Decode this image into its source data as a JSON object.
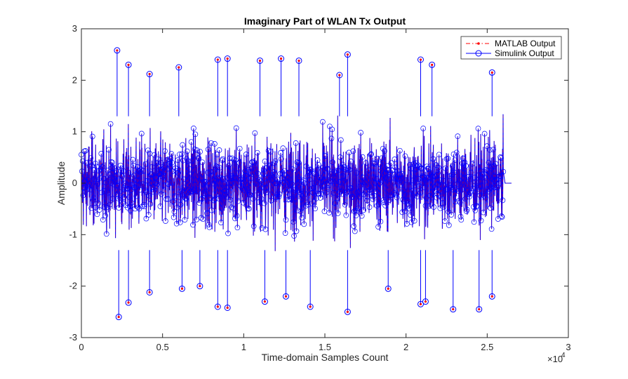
{
  "chart_data": {
    "type": "line",
    "title": "Imaginary Part of WLAN Tx Output",
    "xlabel": "Time-domain Samples Count",
    "ylabel": "Amplitude",
    "x_exponent_label": "×10",
    "x_exponent_power": "4",
    "xlim": [
      0,
      30000
    ],
    "ylim": [
      -3,
      3
    ],
    "x_ticks": [
      0,
      5000,
      10000,
      15000,
      20000,
      25000,
      30000
    ],
    "x_tick_labels": [
      "0",
      "0.5",
      "1",
      "1.5",
      "2",
      "2.5",
      "3"
    ],
    "y_ticks": [
      -3,
      -2,
      -1,
      0,
      1,
      2,
      3
    ],
    "y_tick_labels": [
      "-3",
      "-2",
      "-1",
      "0",
      "1",
      "2",
      "3"
    ],
    "grid": false,
    "legend_position": "top-right",
    "signal": {
      "sample_count": 26000,
      "end_index": 26500,
      "typical_amplitude_range": [
        -1.5,
        1.5
      ]
    },
    "series": [
      {
        "name": "MATLAB Output",
        "color": "#ff0000",
        "line_style": "dash-dot",
        "marker": "dot"
      },
      {
        "name": "Simulink Output",
        "color": "#0000ff",
        "line_style": "solid",
        "marker": "circle"
      }
    ],
    "annotated_peaks": [
      {
        "x": 2200,
        "y": 2.58
      },
      {
        "x": 2300,
        "y": -2.6
      },
      {
        "x": 2900,
        "y": 2.3
      },
      {
        "x": 2900,
        "y": -2.32
      },
      {
        "x": 4200,
        "y": 2.12
      },
      {
        "x": 4200,
        "y": -2.12
      },
      {
        "x": 6000,
        "y": 2.25
      },
      {
        "x": 6200,
        "y": -2.05
      },
      {
        "x": 7300,
        "y": -2.0
      },
      {
        "x": 8400,
        "y": 2.4
      },
      {
        "x": 8400,
        "y": -2.4
      },
      {
        "x": 9000,
        "y": 2.42
      },
      {
        "x": 9000,
        "y": -2.42
      },
      {
        "x": 11000,
        "y": 2.38
      },
      {
        "x": 11300,
        "y": -2.3
      },
      {
        "x": 12300,
        "y": 2.42
      },
      {
        "x": 12600,
        "y": -2.2
      },
      {
        "x": 13400,
        "y": 2.38
      },
      {
        "x": 14100,
        "y": -2.4
      },
      {
        "x": 15900,
        "y": 2.1
      },
      {
        "x": 16400,
        "y": 2.5
      },
      {
        "x": 16400,
        "y": -2.5
      },
      {
        "x": 18900,
        "y": -2.05
      },
      {
        "x": 20900,
        "y": 2.4
      },
      {
        "x": 20900,
        "y": -2.35
      },
      {
        "x": 21200,
        "y": -2.3
      },
      {
        "x": 21600,
        "y": 2.3
      },
      {
        "x": 22900,
        "y": -2.45
      },
      {
        "x": 24500,
        "y": -2.45
      },
      {
        "x": 25300,
        "y": 2.15
      },
      {
        "x": 25300,
        "y": -2.2
      }
    ]
  }
}
